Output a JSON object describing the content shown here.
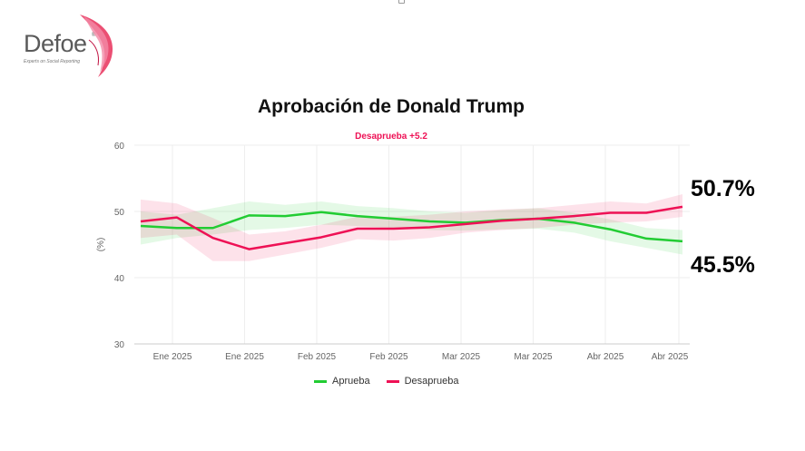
{
  "logo": {
    "word": "Defoe",
    "reg": "®",
    "tagline": "Experts on Social Reporting"
  },
  "colors": {
    "approve": "#22cc33",
    "disapprove": "#ee1155",
    "grid": "#eeeeee",
    "axis_text": "#666666",
    "title": "#111111"
  },
  "chart_data": {
    "type": "line",
    "title": "Aprobación de Donald Trump",
    "subtitle": "Desaprueba +5.2",
    "xlabel": "",
    "ylabel": "(%)",
    "ylim": [
      30,
      60
    ],
    "yticks": [
      30,
      40,
      50,
      60
    ],
    "x_tick_labels": [
      "Ene 2025",
      "Ene 2025",
      "Feb 2025",
      "Feb 2025",
      "Mar 2025",
      "Mar 2025",
      "Abr 2025",
      "Abr 2025"
    ],
    "grid": true,
    "legend_position": "bottom",
    "series": [
      {
        "name": "Aprueba",
        "color": "#22cc33",
        "values": [
          47.8,
          47.5,
          47.5,
          49.4,
          49.3,
          49.9,
          49.3,
          48.9,
          48.5,
          48.3,
          48.7,
          48.9,
          48.3,
          47.3,
          45.9,
          45.5
        ],
        "band_low": [
          45.0,
          46.0,
          46.5,
          47.2,
          47.5,
          48.0,
          47.8,
          47.5,
          47.2,
          47.1,
          47.3,
          47.4,
          46.8,
          45.5,
          44.5,
          43.5
        ],
        "band_high": [
          50.0,
          49.5,
          50.5,
          51.5,
          51.0,
          51.5,
          50.8,
          50.5,
          50.0,
          49.8,
          50.2,
          50.5,
          49.8,
          48.8,
          47.5,
          47.2
        ]
      },
      {
        "name": "Desaprueba",
        "color": "#ee1155",
        "values": [
          48.5,
          49.1,
          46.0,
          44.3,
          45.2,
          46.1,
          47.4,
          47.4,
          47.6,
          48.1,
          48.6,
          48.9,
          49.3,
          49.8,
          49.8,
          50.7
        ],
        "band_low": [
          46.0,
          46.5,
          42.5,
          42.5,
          43.5,
          44.5,
          45.8,
          45.6,
          46.0,
          46.8,
          47.2,
          47.5,
          48.0,
          48.3,
          48.5,
          49.2
        ],
        "band_high": [
          51.8,
          51.2,
          49.0,
          46.5,
          47.0,
          48.0,
          49.2,
          49.2,
          49.5,
          50.0,
          50.3,
          50.5,
          51.0,
          51.5,
          51.2,
          52.6
        ]
      }
    ],
    "end_labels": {
      "approve": "45.5%",
      "disapprove": "50.7%"
    }
  }
}
